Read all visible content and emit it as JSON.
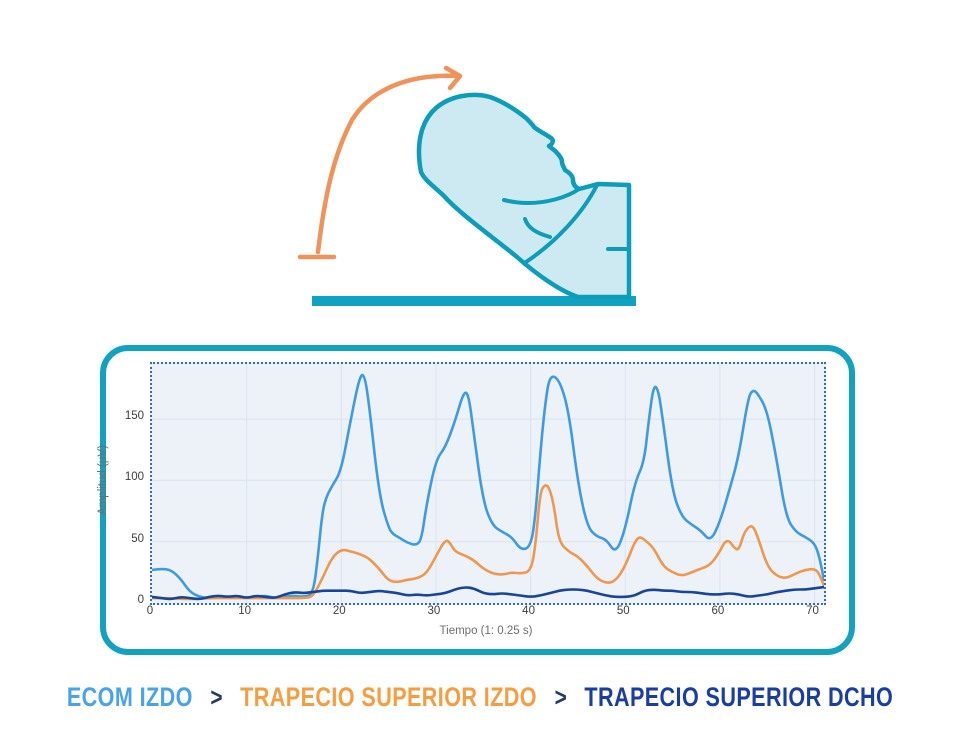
{
  "illustration": {
    "name": "neck-extension-exercise",
    "colors": {
      "outline": "#0d9cba",
      "fill": "#cde9f1",
      "surface": "#10a3c1",
      "arrow": "#f0935b"
    }
  },
  "chart": {
    "plot_background": "#edf2f9",
    "grid_color": "#dbe3f0",
    "border_color": "#2f6ac5",
    "panel_border_color": "#13a1c0"
  },
  "chart_data": {
    "type": "line",
    "title": "",
    "xlabel": "Tiempo (1: 0.25 s)",
    "ylabel": "Amplitud (µV)",
    "xlim": [
      0,
      71
    ],
    "ylim": [
      0,
      195
    ],
    "xticks": [
      0,
      10,
      20,
      30,
      40,
      50,
      60,
      70
    ],
    "yticks": [
      0,
      50,
      100,
      150
    ],
    "grid": true,
    "legend_position": "none",
    "series": [
      {
        "name": "ECOM IZDO",
        "color": "#3d9ae4",
        "points": [
          [
            0,
            27
          ],
          [
            1,
            28
          ],
          [
            2,
            27
          ],
          [
            3,
            20
          ],
          [
            4,
            9
          ],
          [
            5,
            5
          ],
          [
            6,
            4
          ],
          [
            7,
            6
          ],
          [
            8,
            4
          ],
          [
            9,
            6
          ],
          [
            10,
            4
          ],
          [
            11,
            5
          ],
          [
            12,
            6
          ],
          [
            13,
            4
          ],
          [
            14,
            5
          ],
          [
            15,
            6
          ],
          [
            16,
            5
          ],
          [
            17,
            7
          ],
          [
            17.5,
            35
          ],
          [
            18,
            75
          ],
          [
            18.5,
            88
          ],
          [
            19,
            95
          ],
          [
            20,
            108
          ],
          [
            21,
            150
          ],
          [
            22,
            187
          ],
          [
            22.5,
            185
          ],
          [
            23,
            158
          ],
          [
            24,
            88
          ],
          [
            25,
            61
          ],
          [
            25.5,
            56
          ],
          [
            26,
            54
          ],
          [
            27,
            49
          ],
          [
            28,
            47
          ],
          [
            28.5,
            53
          ],
          [
            29,
            80
          ],
          [
            30,
            117
          ],
          [
            31,
            127
          ],
          [
            32,
            148
          ],
          [
            33,
            174
          ],
          [
            33.5,
            168
          ],
          [
            34,
            138
          ],
          [
            35,
            82
          ],
          [
            36,
            63
          ],
          [
            37,
            58
          ],
          [
            38,
            54
          ],
          [
            39,
            43
          ],
          [
            40,
            46
          ],
          [
            40.5,
            70
          ],
          [
            41,
            120
          ],
          [
            41.5,
            160
          ],
          [
            42,
            186
          ],
          [
            43,
            183
          ],
          [
            44,
            158
          ],
          [
            45,
            98
          ],
          [
            46,
            62
          ],
          [
            47,
            54
          ],
          [
            48,
            52
          ],
          [
            49,
            40
          ],
          [
            50,
            60
          ],
          [
            51,
            98
          ],
          [
            52,
            115
          ],
          [
            52.5,
            150
          ],
          [
            53,
            178
          ],
          [
            53.5,
            174
          ],
          [
            54,
            148
          ],
          [
            55,
            90
          ],
          [
            56,
            70
          ],
          [
            57,
            64
          ],
          [
            58,
            59
          ],
          [
            59,
            50
          ],
          [
            60,
            66
          ],
          [
            61,
            92
          ],
          [
            62,
            120
          ],
          [
            63,
            168
          ],
          [
            63.5,
            174
          ],
          [
            64,
            171
          ],
          [
            65,
            157
          ],
          [
            66,
            117
          ],
          [
            67,
            70
          ],
          [
            68,
            58
          ],
          [
            69,
            54
          ],
          [
            70,
            49
          ],
          [
            70.5,
            38
          ],
          [
            71,
            19
          ]
        ]
      },
      {
        "name": "TRAPECIO SUPERIOR IZDO",
        "color": "#f0974e",
        "points": [
          [
            0,
            4
          ],
          [
            2,
            4
          ],
          [
            4,
            3
          ],
          [
            6,
            4
          ],
          [
            8,
            4
          ],
          [
            10,
            4
          ],
          [
            12,
            4
          ],
          [
            14,
            4
          ],
          [
            16,
            4
          ],
          [
            17,
            5
          ],
          [
            18,
            20
          ],
          [
            19,
            37
          ],
          [
            20,
            44
          ],
          [
            21,
            42
          ],
          [
            22,
            40
          ],
          [
            23,
            36
          ],
          [
            24,
            28
          ],
          [
            25,
            18
          ],
          [
            26,
            17
          ],
          [
            27,
            19
          ],
          [
            28,
            20
          ],
          [
            29,
            24
          ],
          [
            30,
            38
          ],
          [
            31,
            52
          ],
          [
            31.5,
            49
          ],
          [
            32,
            42
          ],
          [
            33,
            39
          ],
          [
            34,
            35
          ],
          [
            35,
            28
          ],
          [
            36,
            24
          ],
          [
            37,
            23
          ],
          [
            38,
            25
          ],
          [
            39,
            24
          ],
          [
            40,
            26
          ],
          [
            40.5,
            45
          ],
          [
            41,
            90
          ],
          [
            41.5,
            97
          ],
          [
            42,
            94
          ],
          [
            42.5,
            78
          ],
          [
            43,
            50
          ],
          [
            44,
            42
          ],
          [
            45,
            38
          ],
          [
            46,
            30
          ],
          [
            47,
            20
          ],
          [
            48,
            16
          ],
          [
            49,
            18
          ],
          [
            50,
            30
          ],
          [
            51,
            50
          ],
          [
            51.5,
            54
          ],
          [
            52,
            52
          ],
          [
            53,
            45
          ],
          [
            54,
            30
          ],
          [
            55,
            25
          ],
          [
            56,
            22
          ],
          [
            57,
            25
          ],
          [
            58,
            28
          ],
          [
            59,
            31
          ],
          [
            60,
            42
          ],
          [
            60.5,
            50
          ],
          [
            61,
            51
          ],
          [
            61.5,
            45
          ],
          [
            62,
            43
          ],
          [
            62.5,
            56
          ],
          [
            63,
            62
          ],
          [
            63.5,
            63
          ],
          [
            64,
            54
          ],
          [
            65,
            30
          ],
          [
            66,
            22
          ],
          [
            67,
            20
          ],
          [
            68,
            24
          ],
          [
            69,
            27
          ],
          [
            70,
            28
          ],
          [
            70.5,
            24
          ],
          [
            71,
            14
          ]
        ]
      },
      {
        "name": "TRAPECIO SUPERIOR DCHO",
        "color": "#17459a",
        "points": [
          [
            0,
            5
          ],
          [
            1,
            4
          ],
          [
            2,
            3
          ],
          [
            3,
            5
          ],
          [
            4,
            4
          ],
          [
            5,
            3
          ],
          [
            6,
            5
          ],
          [
            7,
            6
          ],
          [
            8,
            5
          ],
          [
            9,
            6
          ],
          [
            10,
            4
          ],
          [
            11,
            6
          ],
          [
            12,
            5
          ],
          [
            13,
            4
          ],
          [
            14,
            7
          ],
          [
            15,
            9
          ],
          [
            16,
            8
          ],
          [
            17,
            9
          ],
          [
            18,
            10
          ],
          [
            19,
            10
          ],
          [
            20,
            10
          ],
          [
            21,
            10
          ],
          [
            22,
            8
          ],
          [
            23,
            9
          ],
          [
            24,
            10
          ],
          [
            25,
            9
          ],
          [
            26,
            8
          ],
          [
            27,
            6
          ],
          [
            28,
            7
          ],
          [
            29,
            6
          ],
          [
            30,
            7
          ],
          [
            31,
            8
          ],
          [
            32,
            11
          ],
          [
            33,
            13
          ],
          [
            34,
            12
          ],
          [
            35,
            8
          ],
          [
            36,
            7
          ],
          [
            37,
            8
          ],
          [
            38,
            7
          ],
          [
            39,
            6
          ],
          [
            40,
            5
          ],
          [
            41,
            6
          ],
          [
            42,
            8
          ],
          [
            43,
            10
          ],
          [
            44,
            11
          ],
          [
            45,
            11
          ],
          [
            46,
            10
          ],
          [
            47,
            8
          ],
          [
            48,
            6
          ],
          [
            49,
            5
          ],
          [
            50,
            5
          ],
          [
            51,
            6
          ],
          [
            52,
            10
          ],
          [
            53,
            11
          ],
          [
            54,
            10
          ],
          [
            55,
            10
          ],
          [
            56,
            9
          ],
          [
            57,
            9
          ],
          [
            58,
            8
          ],
          [
            59,
            7
          ],
          [
            60,
            7
          ],
          [
            61,
            8
          ],
          [
            62,
            7
          ],
          [
            63,
            5
          ],
          [
            64,
            6
          ],
          [
            65,
            7
          ],
          [
            66,
            9
          ],
          [
            67,
            10
          ],
          [
            68,
            11
          ],
          [
            69,
            11
          ],
          [
            70,
            12
          ],
          [
            71,
            13
          ]
        ]
      }
    ]
  },
  "legend": {
    "separator": ">",
    "separator_color": "#243a66",
    "items": [
      {
        "label": "ECOM IZDO",
        "color": "#4aa3e9"
      },
      {
        "label": "TRAPECIO SUPERIOR IZDO",
        "color": "#f59d40"
      },
      {
        "label": "TRAPECIO SUPERIOR DCHO",
        "color": "#1a3da3"
      }
    ]
  }
}
